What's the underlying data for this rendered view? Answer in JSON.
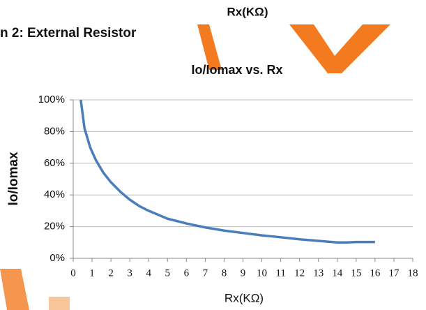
{
  "header": {
    "top_label": "Rx(KΩ)",
    "section_title": "n 2: External Resistor"
  },
  "chart_data": {
    "type": "line",
    "title": "Io/Iomax vs. Rx",
    "x_label": "Rx(KΩ)",
    "y_label": "Io/Iomax",
    "xlim": [
      0,
      18
    ],
    "xticks": [
      0,
      1,
      2,
      3,
      4,
      5,
      6,
      7,
      8,
      9,
      10,
      11,
      12,
      13,
      14,
      15,
      16,
      17,
      18
    ],
    "ylim": [
      0,
      100
    ],
    "yticks": [
      {
        "value": 0,
        "label": "0%"
      },
      {
        "value": 20,
        "label": "20%"
      },
      {
        "value": 40,
        "label": "40%"
      },
      {
        "value": 60,
        "label": "60%"
      },
      {
        "value": 80,
        "label": "80%"
      },
      {
        "value": 100,
        "label": "100%"
      }
    ],
    "grid": true,
    "series": [
      {
        "name": "Io/Iomax",
        "color": "#4a7ebb",
        "x": [
          0.4,
          0.6,
          0.9,
          1.2,
          1.6,
          2,
          2.5,
          3,
          3.5,
          4,
          5,
          6,
          7,
          8,
          9,
          10,
          11,
          12,
          13,
          14,
          14.5,
          15,
          16
        ],
        "values": [
          100,
          82,
          70,
          62,
          54,
          48,
          42,
          37,
          33,
          30,
          25,
          22,
          19.5,
          17.5,
          16,
          14.5,
          13.3,
          12,
          11,
          10,
          10,
          10.3,
          10.3
        ]
      }
    ]
  }
}
